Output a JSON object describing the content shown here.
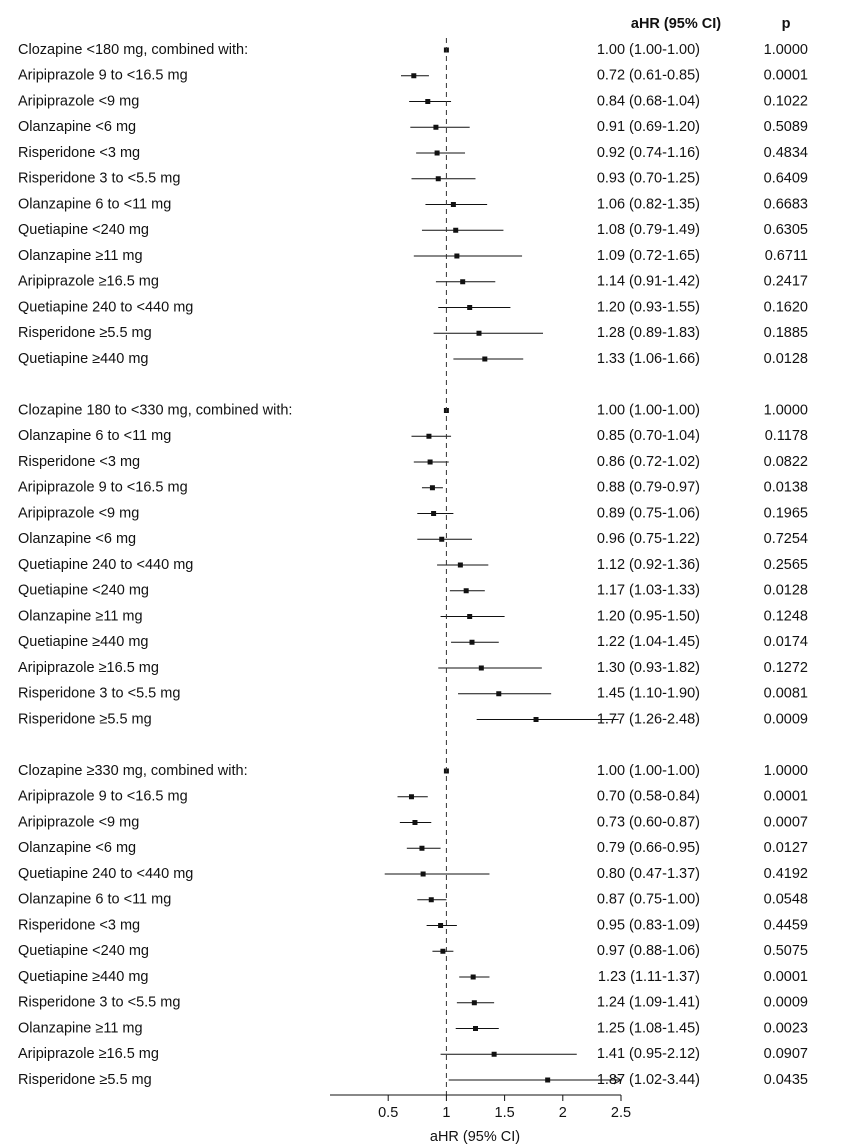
{
  "chart_data": {
    "type": "forest",
    "headers": {
      "estimate": "aHR (95% CI)",
      "p": "p"
    },
    "xlabel": "aHR (95% CI)",
    "xlim": [
      0.0,
      2.5
    ],
    "xticks": [
      0.5,
      1,
      1.5,
      2,
      2.5
    ],
    "reference_line": 1,
    "groups": [
      {
        "name": "Clozapine <180 mg, combined with:",
        "reference": {
          "hr": 1.0,
          "lo": 1.0,
          "hi": 1.0,
          "text": "1.00 (1.00-1.00)",
          "p": "1.0000"
        },
        "rows": [
          {
            "label": "Aripiprazole 9 to <16.5 mg",
            "hr": 0.72,
            "lo": 0.61,
            "hi": 0.85,
            "text": "0.72 (0.61-0.85)",
            "p": "0.0001"
          },
          {
            "label": "Aripiprazole <9 mg",
            "hr": 0.84,
            "lo": 0.68,
            "hi": 1.04,
            "text": "0.84 (0.68-1.04)",
            "p": "0.1022"
          },
          {
            "label": "Olanzapine <6 mg",
            "hr": 0.91,
            "lo": 0.69,
            "hi": 1.2,
            "text": "0.91 (0.69-1.20)",
            "p": "0.5089"
          },
          {
            "label": "Risperidone <3 mg",
            "hr": 0.92,
            "lo": 0.74,
            "hi": 1.16,
            "text": "0.92 (0.74-1.16)",
            "p": "0.4834"
          },
          {
            "label": "Risperidone 3 to <5.5 mg",
            "hr": 0.93,
            "lo": 0.7,
            "hi": 1.25,
            "text": "0.93 (0.70-1.25)",
            "p": "0.6409"
          },
          {
            "label": "Olanzapine 6 to <11 mg",
            "hr": 1.06,
            "lo": 0.82,
            "hi": 1.35,
            "text": "1.06 (0.82-1.35)",
            "p": "0.6683"
          },
          {
            "label": "Quetiapine <240 mg",
            "hr": 1.08,
            "lo": 0.79,
            "hi": 1.49,
            "text": "1.08 (0.79-1.49)",
            "p": "0.6305"
          },
          {
            "label": "Olanzapine ≥11 mg",
            "hr": 1.09,
            "lo": 0.72,
            "hi": 1.65,
            "text": "1.09 (0.72-1.65)",
            "p": "0.6711"
          },
          {
            "label": "Aripiprazole ≥16.5 mg",
            "hr": 1.14,
            "lo": 0.91,
            "hi": 1.42,
            "text": "1.14 (0.91-1.42)",
            "p": "0.2417"
          },
          {
            "label": "Quetiapine 240 to <440 mg",
            "hr": 1.2,
            "lo": 0.93,
            "hi": 1.55,
            "text": "1.20 (0.93-1.55)",
            "p": "0.1620"
          },
          {
            "label": "Risperidone ≥5.5 mg",
            "hr": 1.28,
            "lo": 0.89,
            "hi": 1.83,
            "text": "1.28 (0.89-1.83)",
            "p": "0.1885"
          },
          {
            "label": "Quetiapine ≥440 mg",
            "hr": 1.33,
            "lo": 1.06,
            "hi": 1.66,
            "text": "1.33 (1.06-1.66)",
            "p": "0.0128"
          }
        ]
      },
      {
        "name": "Clozapine 180 to <330 mg, combined with:",
        "reference": {
          "hr": 1.0,
          "lo": 1.0,
          "hi": 1.0,
          "text": "1.00 (1.00-1.00)",
          "p": "1.0000"
        },
        "rows": [
          {
            "label": "Olanzapine 6 to <11 mg",
            "hr": 0.85,
            "lo": 0.7,
            "hi": 1.04,
            "text": "0.85 (0.70-1.04)",
            "p": "0.1178"
          },
          {
            "label": "Risperidone <3 mg",
            "hr": 0.86,
            "lo": 0.72,
            "hi": 1.02,
            "text": "0.86 (0.72-1.02)",
            "p": "0.0822"
          },
          {
            "label": "Aripiprazole 9 to <16.5 mg",
            "hr": 0.88,
            "lo": 0.79,
            "hi": 0.97,
            "text": "0.88 (0.79-0.97)",
            "p": "0.0138"
          },
          {
            "label": "Aripiprazole <9 mg",
            "hr": 0.89,
            "lo": 0.75,
            "hi": 1.06,
            "text": "0.89 (0.75-1.06)",
            "p": "0.1965"
          },
          {
            "label": "Olanzapine <6 mg",
            "hr": 0.96,
            "lo": 0.75,
            "hi": 1.22,
            "text": "0.96 (0.75-1.22)",
            "p": "0.7254"
          },
          {
            "label": "Quetiapine 240 to <440 mg",
            "hr": 1.12,
            "lo": 0.92,
            "hi": 1.36,
            "text": "1.12 (0.92-1.36)",
            "p": "0.2565"
          },
          {
            "label": "Quetiapine <240 mg",
            "hr": 1.17,
            "lo": 1.03,
            "hi": 1.33,
            "text": "1.17 (1.03-1.33)",
            "p": "0.0128"
          },
          {
            "label": "Olanzapine ≥11 mg",
            "hr": 1.2,
            "lo": 0.95,
            "hi": 1.5,
            "text": "1.20 (0.95-1.50)",
            "p": "0.1248"
          },
          {
            "label": "Quetiapine ≥440 mg",
            "hr": 1.22,
            "lo": 1.04,
            "hi": 1.45,
            "text": "1.22 (1.04-1.45)",
            "p": "0.0174"
          },
          {
            "label": "Aripiprazole ≥16.5 mg",
            "hr": 1.3,
            "lo": 0.93,
            "hi": 1.82,
            "text": "1.30 (0.93-1.82)",
            "p": "0.1272"
          },
          {
            "label": "Risperidone 3 to <5.5 mg",
            "hr": 1.45,
            "lo": 1.1,
            "hi": 1.9,
            "text": "1.45 (1.10-1.90)",
            "p": "0.0081"
          },
          {
            "label": "Risperidone ≥5.5 mg",
            "hr": 1.77,
            "lo": 1.26,
            "hi": 2.48,
            "text": "1.77 (1.26-2.48)",
            "p": "0.0009"
          }
        ]
      },
      {
        "name": "Clozapine ≥330 mg, combined with:",
        "reference": {
          "hr": 1.0,
          "lo": 1.0,
          "hi": 1.0,
          "text": "1.00 (1.00-1.00)",
          "p": "1.0000"
        },
        "rows": [
          {
            "label": "Aripiprazole 9 to <16.5 mg",
            "hr": 0.7,
            "lo": 0.58,
            "hi": 0.84,
            "text": "0.70 (0.58-0.84)",
            "p": "0.0001"
          },
          {
            "label": "Aripiprazole <9 mg",
            "hr": 0.73,
            "lo": 0.6,
            "hi": 0.87,
            "text": "0.73 (0.60-0.87)",
            "p": "0.0007"
          },
          {
            "label": "Olanzapine <6 mg",
            "hr": 0.79,
            "lo": 0.66,
            "hi": 0.95,
            "text": "0.79 (0.66-0.95)",
            "p": "0.0127"
          },
          {
            "label": "Quetiapine 240 to <440 mg",
            "hr": 0.8,
            "lo": 0.47,
            "hi": 1.37,
            "text": "0.80 (0.47-1.37)",
            "p": "0.4192"
          },
          {
            "label": "Olanzapine 6 to <11 mg",
            "hr": 0.87,
            "lo": 0.75,
            "hi": 1.0,
            "text": "0.87 (0.75-1.00)",
            "p": "0.0548"
          },
          {
            "label": "Risperidone <3 mg",
            "hr": 0.95,
            "lo": 0.83,
            "hi": 1.09,
            "text": "0.95 (0.83-1.09)",
            "p": "0.4459"
          },
          {
            "label": "Quetiapine <240 mg",
            "hr": 0.97,
            "lo": 0.88,
            "hi": 1.06,
            "text": "0.97 (0.88-1.06)",
            "p": "0.5075"
          },
          {
            "label": "Quetiapine ≥440 mg",
            "hr": 1.23,
            "lo": 1.11,
            "hi": 1.37,
            "text": "1.23 (1.11-1.37)",
            "p": "0.0001"
          },
          {
            "label": "Risperidone 3 to <5.5 mg",
            "hr": 1.24,
            "lo": 1.09,
            "hi": 1.41,
            "text": "1.24 (1.09-1.41)",
            "p": "0.0009"
          },
          {
            "label": "Olanzapine ≥11 mg",
            "hr": 1.25,
            "lo": 1.08,
            "hi": 1.45,
            "text": "1.25 (1.08-1.45)",
            "p": "0.0023"
          },
          {
            "label": "Aripiprazole ≥16.5 mg",
            "hr": 1.41,
            "lo": 0.95,
            "hi": 2.12,
            "text": "1.41 (0.95-2.12)",
            "p": "0.0907"
          },
          {
            "label": "Risperidone ≥5.5 mg",
            "hr": 1.87,
            "lo": 1.02,
            "hi": 3.44,
            "clipped_high": true,
            "text": "1.87 (1.02-3.44)",
            "p": "0.0435"
          }
        ]
      }
    ]
  }
}
